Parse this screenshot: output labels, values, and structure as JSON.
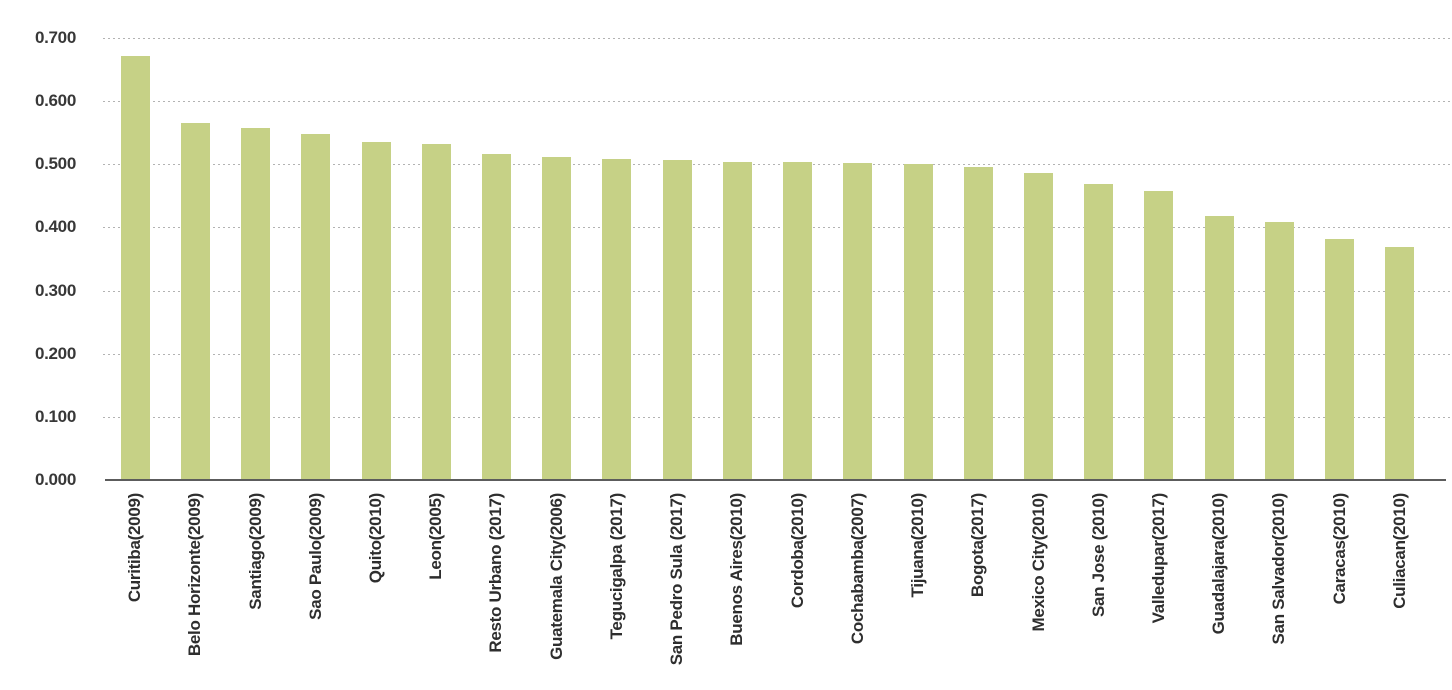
{
  "chart_data": {
    "type": "bar",
    "title": "",
    "xlabel": "",
    "ylabel": "",
    "categories": [
      "Curitiba(2009)",
      "Belo Horizonte(2009)",
      "Santiago(2009)",
      "Sao Paulo(2009)",
      "Quito(2010)",
      "Leon(2005)",
      "Resto Urbano (2017)",
      "Guatemala City(2006)",
      "Tegucigalpa (2017)",
      "San Pedro Sula (2017)",
      "Buenos Aires(2010)",
      "Cordoba(2010)",
      "Cochabamba(2007)",
      "Tijuana(2010)",
      "Bogota(2017)",
      "Mexico City(2010)",
      "San Jose (2010)",
      "Valledupar(2017)",
      "Guadalajara(2010)",
      "San Salvador(2010)",
      "Caracas(2010)",
      "Culiacan(2010)"
    ],
    "values": [
      0.671,
      0.565,
      0.557,
      0.548,
      0.535,
      0.532,
      0.517,
      0.511,
      0.509,
      0.507,
      0.503,
      0.503,
      0.502,
      0.501,
      0.496,
      0.486,
      0.468,
      0.457,
      0.418,
      0.409,
      0.381,
      0.369
    ],
    "ylim": [
      0.0,
      0.7
    ],
    "yticks": [
      0.0,
      0.1,
      0.2,
      0.3,
      0.4,
      0.5,
      0.6,
      0.7
    ],
    "ytick_labels": [
      "0.000",
      "0.100",
      "0.200",
      "0.300",
      "0.400",
      "0.500",
      "0.600",
      "0.700"
    ],
    "grid": "horizontal-dashed",
    "legend": "none",
    "bar_color": "#c6d186",
    "gridline_color": "#b3b3b3",
    "axis_line_color": "#5c5c5c",
    "label_color": "#2e2e2e"
  }
}
